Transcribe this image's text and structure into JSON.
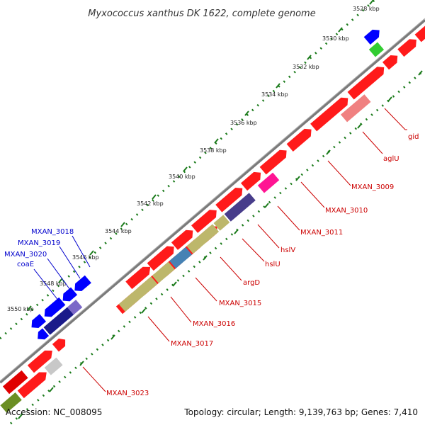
{
  "title": "Myxococcus xanthus DK 1622, complete genome",
  "footer": {
    "accession": "Accession: NC_008095",
    "topology": "Topology: circular; Length: 9,139,763 bp; Genes: 7,410"
  },
  "ticks": [
    "3528 kbp",
    "3530 kbp",
    "3532 kbp",
    "3534 kbp",
    "3536 kbp",
    "3538 kbp",
    "3540 kbp",
    "3542 kbp",
    "3544 kbp",
    "3546 kbp",
    "3548 kbp",
    "3550 kbp"
  ],
  "forward_labels": [
    "MXAN_3018",
    "MXAN_3019",
    "MXAN_3020",
    "coaE"
  ],
  "reverse_labels": [
    "gid",
    "aglU",
    "MXAN_3009",
    "MXAN_3010",
    "MXAN_3011",
    "hslV",
    "hslU",
    "argD",
    "MXAN_3015",
    "MXAN_3016",
    "MXAN_3017",
    "MXAN_3023"
  ],
  "colors": {
    "backbone": "#808080",
    "tick_marks": "#1a7a1a",
    "red_gene": "#ff0000",
    "blue_gene": "#0000ff",
    "navy_gene": "#1a1a8a",
    "purple_gene": "#7b68c8",
    "dark_slate": "#483d8b",
    "steel_blue": "#4682b4",
    "khaki_gene": "#bdb76b",
    "magenta_gene": "#ff1493",
    "salmon_gene": "#f08080",
    "gray_gene": "#c0c0c0",
    "olive_gene": "#6b8e23",
    "green_gene": "#32cd32",
    "lime_gene": "#adff2f",
    "red_label": "#cc0000",
    "blue_label": "#0000cc"
  }
}
